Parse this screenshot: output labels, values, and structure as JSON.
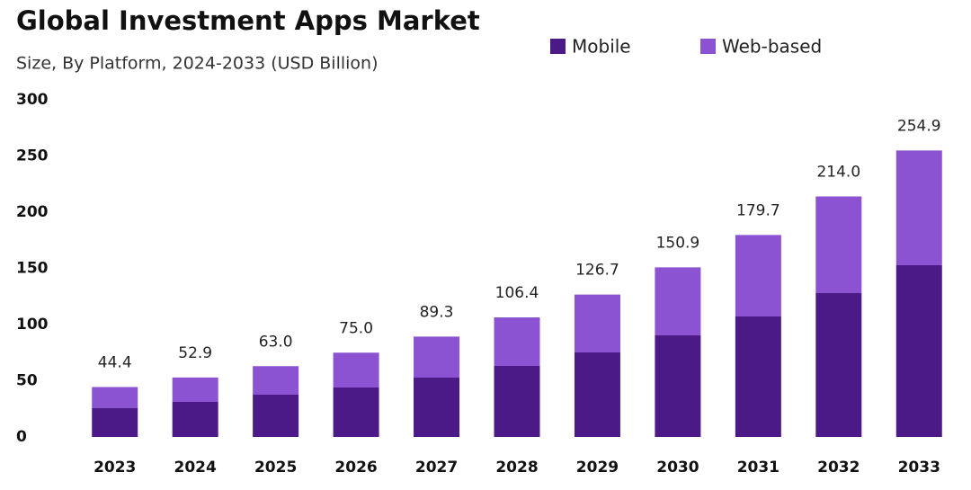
{
  "chart_data": {
    "type": "stacked_bar",
    "title": "Global Investment Apps Market",
    "subtitle": "Size, By Platform, 2024-2033 (USD Billion)",
    "categories": [
      "2023",
      "2024",
      "2025",
      "2026",
      "2027",
      "2028",
      "2029",
      "2030",
      "2031",
      "2032",
      "2033"
    ],
    "series": [
      {
        "name": "Mobile",
        "color": "#4b1a87",
        "values": [
          25.6,
          31.2,
          37.6,
          44.0,
          52.8,
          63.2,
          75.2,
          90.4,
          107.2,
          128.0,
          152.8
        ]
      },
      {
        "name": "Web-based",
        "color": "#8b52d1",
        "values": [
          18.8,
          21.7,
          25.4,
          31.0,
          36.5,
          43.2,
          51.5,
          60.5,
          72.5,
          86.0,
          102.1
        ]
      }
    ],
    "totals": [
      44.4,
      52.9,
      63.0,
      75.0,
      89.3,
      106.4,
      126.7,
      150.9,
      179.7,
      214.0,
      254.9
    ],
    "total_labels": [
      "44.4",
      "52.9",
      "63.0",
      "75.0",
      "89.3",
      "106.4",
      "126.7",
      "150.9",
      "179.7",
      "214.0",
      "254.9"
    ],
    "ylim": [
      0,
      300
    ],
    "yticks": [
      0,
      50,
      100,
      150,
      200,
      250,
      300
    ],
    "grid": false
  }
}
